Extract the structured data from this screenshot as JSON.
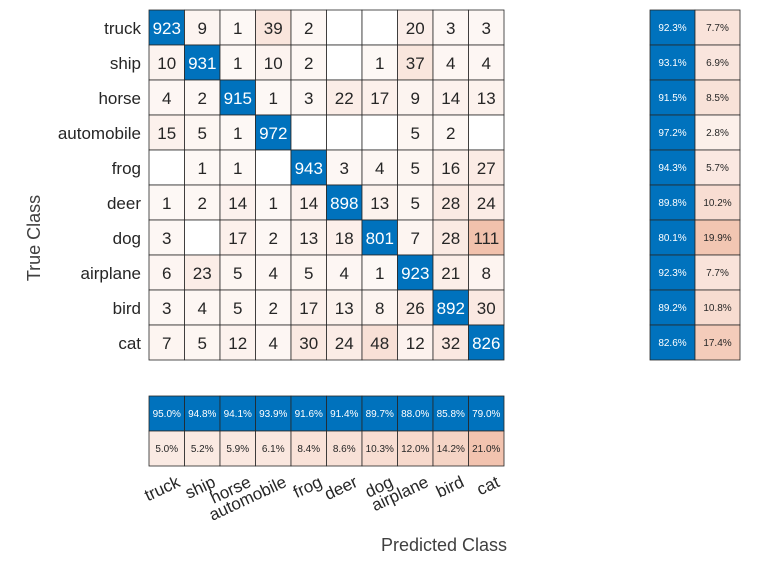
{
  "chart_data": {
    "type": "heatmap",
    "subtype": "confusion-matrix",
    "xlabel": "Predicted Class",
    "ylabel": "True Class",
    "row_labels": [
      "truck",
      "ship",
      "horse",
      "automobile",
      "frog",
      "deer",
      "dog",
      "airplane",
      "bird",
      "cat"
    ],
    "col_labels": [
      "truck",
      "ship",
      "horse",
      "automobile",
      "frog",
      "deer",
      "dog",
      "airplane",
      "bird",
      "cat"
    ],
    "matrix": [
      [
        923,
        9,
        1,
        39,
        2,
        null,
        null,
        20,
        3,
        3
      ],
      [
        10,
        931,
        1,
        10,
        2,
        null,
        1,
        37,
        4,
        4
      ],
      [
        4,
        2,
        915,
        1,
        3,
        22,
        17,
        9,
        14,
        13
      ],
      [
        15,
        5,
        1,
        972,
        null,
        null,
        null,
        5,
        2,
        null
      ],
      [
        null,
        1,
        1,
        null,
        943,
        3,
        4,
        5,
        16,
        27
      ],
      [
        1,
        2,
        14,
        1,
        14,
        898,
        13,
        5,
        28,
        24
      ],
      [
        3,
        null,
        17,
        2,
        13,
        18,
        801,
        7,
        28,
        111
      ],
      [
        6,
        23,
        5,
        4,
        5,
        4,
        1,
        923,
        21,
        8
      ],
      [
        3,
        4,
        5,
        2,
        17,
        13,
        8,
        26,
        892,
        30
      ],
      [
        7,
        5,
        12,
        4,
        30,
        24,
        48,
        12,
        32,
        826
      ]
    ],
    "row_summary": {
      "correct": [
        "92.3%",
        "93.1%",
        "91.5%",
        "97.2%",
        "94.3%",
        "89.8%",
        "80.1%",
        "92.3%",
        "89.2%",
        "82.6%"
      ],
      "incorrect": [
        "7.7%",
        "6.9%",
        "8.5%",
        "2.8%",
        "5.7%",
        "10.2%",
        "19.9%",
        "7.7%",
        "10.8%",
        "17.4%"
      ]
    },
    "column_summary": {
      "correct": [
        "95.0%",
        "94.8%",
        "94.1%",
        "93.9%",
        "91.6%",
        "91.4%",
        "89.7%",
        "88.0%",
        "85.8%",
        "79.0%"
      ],
      "incorrect": [
        "5.0%",
        "5.2%",
        "5.9%",
        "6.1%",
        "8.4%",
        "8.6%",
        "10.3%",
        "12.0%",
        "14.2%",
        "21.0%"
      ]
    }
  },
  "colors": {
    "diagonal": "#0072BD",
    "offdiag_max": "#D95319",
    "grid": "#262626",
    "text_dark": "#262626",
    "text_light": "#ffffff"
  }
}
